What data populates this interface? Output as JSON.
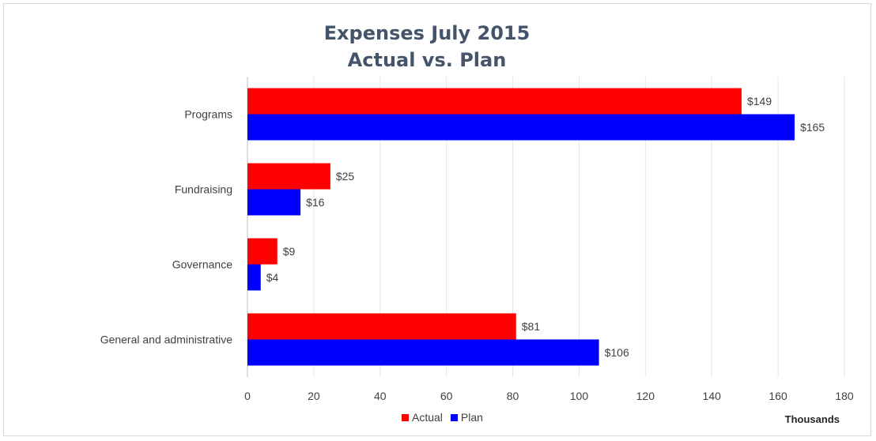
{
  "chart_data": {
    "type": "bar",
    "orientation": "horizontal",
    "title": "Expenses July 2015",
    "subtitle": "Actual vs. Plan",
    "categories": [
      "Programs",
      "Fundraising",
      "Governance",
      "General and administrative"
    ],
    "series": [
      {
        "name": "Actual",
        "color": "#ff0000",
        "values": [
          149,
          25,
          9,
          81
        ],
        "labels": [
          "$149",
          "$25",
          "$9",
          "$81"
        ]
      },
      {
        "name": "Plan",
        "color": "#0000ff",
        "values": [
          165,
          16,
          4,
          106
        ],
        "labels": [
          "$165",
          "$16",
          "$4",
          "$106"
        ]
      }
    ],
    "xlim": [
      0,
      180
    ],
    "xticks": [
      "0",
      "20",
      "40",
      "60",
      "80",
      "100",
      "120",
      "140",
      "160",
      "180"
    ],
    "xlabel": "Thousands",
    "ylabel": "",
    "grid": true,
    "legend_position": "bottom"
  }
}
